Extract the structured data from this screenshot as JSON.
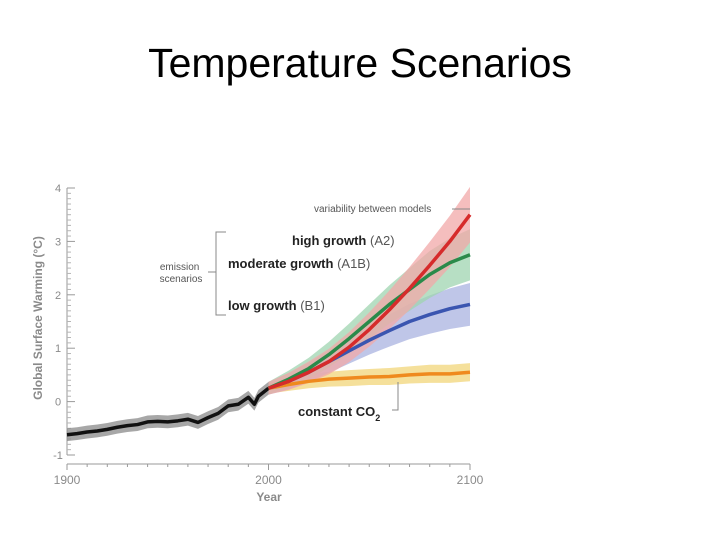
{
  "slide": {
    "title": "Temperature Scenarios"
  },
  "chart_data": {
    "type": "line",
    "title": "",
    "xlabel": "Year",
    "ylabel": "Global Surface Warming (°C)",
    "xlim": [
      1900,
      2100
    ],
    "ylim": [
      -1,
      4
    ],
    "x_ticks": [
      1900,
      2000,
      2100
    ],
    "y_ticks": [
      -1,
      0,
      1,
      2,
      3,
      4
    ],
    "grid": false,
    "legend_title": "emission scenarios",
    "annotations": {
      "variability": "variability between models",
      "bracket_label": "emission scenarios"
    },
    "series": [
      {
        "name": "historical",
        "color": "#111111",
        "band_color": "#8a8a8a",
        "x": [
          1900,
          1905,
          1910,
          1915,
          1920,
          1925,
          1930,
          1935,
          1940,
          1945,
          1950,
          1955,
          1960,
          1965,
          1970,
          1975,
          1980,
          1985,
          1990,
          1993,
          1995,
          2000
        ],
        "y": [
          -0.62,
          -0.6,
          -0.57,
          -0.55,
          -0.52,
          -0.48,
          -0.45,
          -0.43,
          -0.38,
          -0.37,
          -0.38,
          -0.36,
          -0.33,
          -0.39,
          -0.3,
          -0.22,
          -0.08,
          -0.05,
          0.08,
          -0.05,
          0.1,
          0.25
        ],
        "band": 0.12
      },
      {
        "name": "high growth (A2)",
        "label_bold": "high growth",
        "label_tag": "(A2)",
        "color": "#d62b2b",
        "band_color": "#f2a8a8",
        "x": [
          2000,
          2010,
          2020,
          2030,
          2040,
          2050,
          2060,
          2070,
          2080,
          2090,
          2100
        ],
        "y": [
          0.25,
          0.38,
          0.55,
          0.75,
          1.02,
          1.35,
          1.72,
          2.12,
          2.55,
          3.0,
          3.5
        ],
        "band": [
          0.12,
          0.16,
          0.2,
          0.24,
          0.28,
          0.32,
          0.36,
          0.4,
          0.44,
          0.48,
          0.52
        ]
      },
      {
        "name": "moderate growth (A1B)",
        "label_bold": "moderate growth",
        "label_tag": "(A1B)",
        "color": "#2a8a4a",
        "band_color": "#9fd4b0",
        "x": [
          2000,
          2010,
          2020,
          2030,
          2040,
          2050,
          2060,
          2070,
          2080,
          2090,
          2100
        ],
        "y": [
          0.25,
          0.42,
          0.62,
          0.88,
          1.18,
          1.5,
          1.82,
          2.1,
          2.38,
          2.6,
          2.75
        ],
        "band": [
          0.12,
          0.16,
          0.2,
          0.24,
          0.28,
          0.32,
          0.36,
          0.4,
          0.44,
          0.46,
          0.48
        ]
      },
      {
        "name": "low growth (B1)",
        "label_bold": "low growth",
        "label_tag": "(B1)",
        "color": "#3a55b0",
        "band_color": "#aab3e0",
        "x": [
          2000,
          2010,
          2020,
          2030,
          2040,
          2050,
          2060,
          2070,
          2080,
          2090,
          2100
        ],
        "y": [
          0.25,
          0.38,
          0.55,
          0.75,
          0.95,
          1.15,
          1.33,
          1.5,
          1.63,
          1.74,
          1.82
        ],
        "band": [
          0.12,
          0.15,
          0.18,
          0.21,
          0.24,
          0.27,
          0.3,
          0.33,
          0.36,
          0.38,
          0.4
        ]
      },
      {
        "name": "constant CO2",
        "label_bold": "constant CO",
        "label_sub": "2",
        "color": "#ef8a1e",
        "band_color": "#f2d67a",
        "x": [
          2000,
          2010,
          2020,
          2030,
          2040,
          2050,
          2060,
          2070,
          2080,
          2090,
          2100
        ],
        "y": [
          0.25,
          0.32,
          0.38,
          0.42,
          0.44,
          0.46,
          0.47,
          0.5,
          0.52,
          0.52,
          0.55
        ],
        "band": [
          0.1,
          0.12,
          0.13,
          0.14,
          0.15,
          0.15,
          0.16,
          0.16,
          0.17,
          0.17,
          0.17
        ]
      }
    ]
  }
}
